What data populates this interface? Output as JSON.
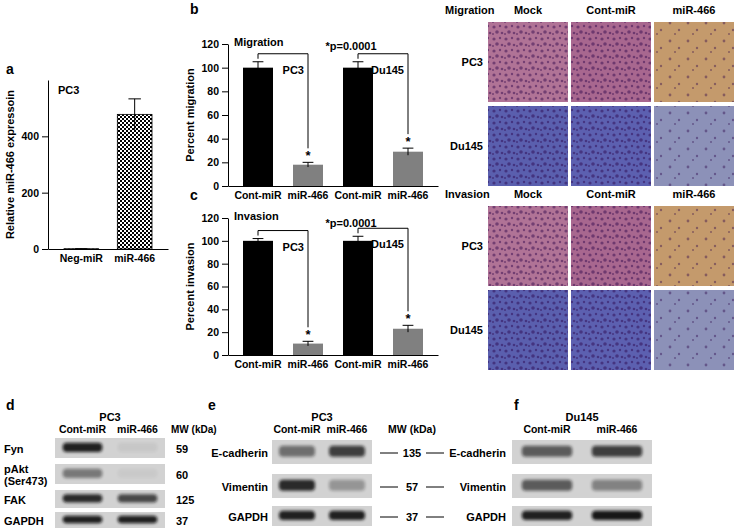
{
  "chart_data": [
    {
      "type": "bar",
      "panel": "a",
      "title": "PC3",
      "ylabel": "Relative miR-466 expressoin",
      "categories": [
        "Neg-miR",
        "miR-466"
      ],
      "values": [
        1,
        478
      ],
      "errors": [
        0,
        55
      ],
      "color": "#000000",
      "ylim": [
        0,
        600
      ],
      "yticks": [
        0,
        200,
        400
      ]
    },
    {
      "type": "bar",
      "panel": "b",
      "title": "Migration",
      "ylabel": "Percent migration",
      "categories": [
        "Cont-miR",
        "miR-466",
        "Cont-miR",
        "miR-466"
      ],
      "values": [
        100,
        18,
        100,
        29
      ],
      "errors": [
        5,
        2,
        5,
        3
      ],
      "colors": [
        "#000000",
        "#808080",
        "#000000",
        "#808080"
      ],
      "group_labels": [
        "PC3",
        "Du145"
      ],
      "annotation": "*p=0.0001",
      "stars": [
        null,
        "*",
        null,
        "*"
      ],
      "ylim": [
        0,
        120
      ],
      "yticks": [
        0,
        20,
        40,
        60,
        80,
        100,
        120
      ]
    },
    {
      "type": "bar",
      "panel": "c",
      "title": "Invasion",
      "ylabel": "Percent invasion",
      "categories": [
        "Cont-miR",
        "miR-466",
        "Cont-miR",
        "miR-466"
      ],
      "values": [
        100,
        10,
        100,
        23
      ],
      "errors": [
        2,
        2,
        4,
        3
      ],
      "colors": [
        "#000000",
        "#808080",
        "#000000",
        "#808080"
      ],
      "group_labels": [
        "PC3",
        "Du145"
      ],
      "annotation": "*p=0.0001",
      "stars": [
        null,
        "*",
        null,
        "*"
      ],
      "ylim": [
        0,
        120
      ],
      "yticks": [
        0,
        20,
        40,
        60,
        80,
        100,
        120
      ]
    }
  ],
  "micrographs": [
    {
      "title": "Migration",
      "columns": [
        "Mock",
        "Cont-miR",
        "miR-466"
      ],
      "rows": [
        "PC3",
        "Du145"
      ]
    },
    {
      "title": "Invasion",
      "columns": [
        "Mock",
        "Cont-miR",
        "miR-466"
      ],
      "rows": [
        "PC3",
        "Du145"
      ]
    }
  ],
  "blots": [
    {
      "panel": "d",
      "title": "PC3",
      "lanes": [
        "Cont-miR",
        "miR-466"
      ],
      "mw_header": "MW (kDa)",
      "rows": [
        {
          "label": "Fyn",
          "mw": 59,
          "intensity": [
            0.9,
            0.05
          ]
        },
        {
          "label": [
            "pAkt",
            "(Ser473)"
          ],
          "mw": 60,
          "intensity": [
            0.45,
            0.04
          ]
        },
        {
          "label": "FAK",
          "mw": 125,
          "intensity": [
            0.85,
            0.7
          ]
        },
        {
          "label": "GAPDH",
          "mw": 37,
          "intensity": [
            0.9,
            0.9
          ]
        }
      ]
    },
    {
      "panel": "e",
      "title": "PC3",
      "lanes": [
        "Cont-miR",
        "miR-466"
      ],
      "mw_header": "MW (kDa)",
      "rows": [
        {
          "label": "E-cadherin",
          "mw": 135,
          "intensity": [
            0.5,
            0.75
          ]
        },
        {
          "label": "Vimentin",
          "mw": 57,
          "intensity": [
            0.85,
            0.3
          ]
        },
        {
          "label": "GAPDH",
          "mw": 37,
          "intensity": [
            0.9,
            0.9
          ]
        }
      ]
    },
    {
      "panel": "f",
      "title": "Du145",
      "lanes": [
        "Cont-miR",
        "miR-466"
      ],
      "rows": [
        {
          "label": "E-cadherin",
          "intensity": [
            0.6,
            0.75
          ]
        },
        {
          "label": "Vimentin",
          "intensity": [
            0.6,
            0.4
          ]
        },
        {
          "label": "GAPDH",
          "intensity": [
            0.9,
            0.95
          ]
        }
      ]
    }
  ]
}
